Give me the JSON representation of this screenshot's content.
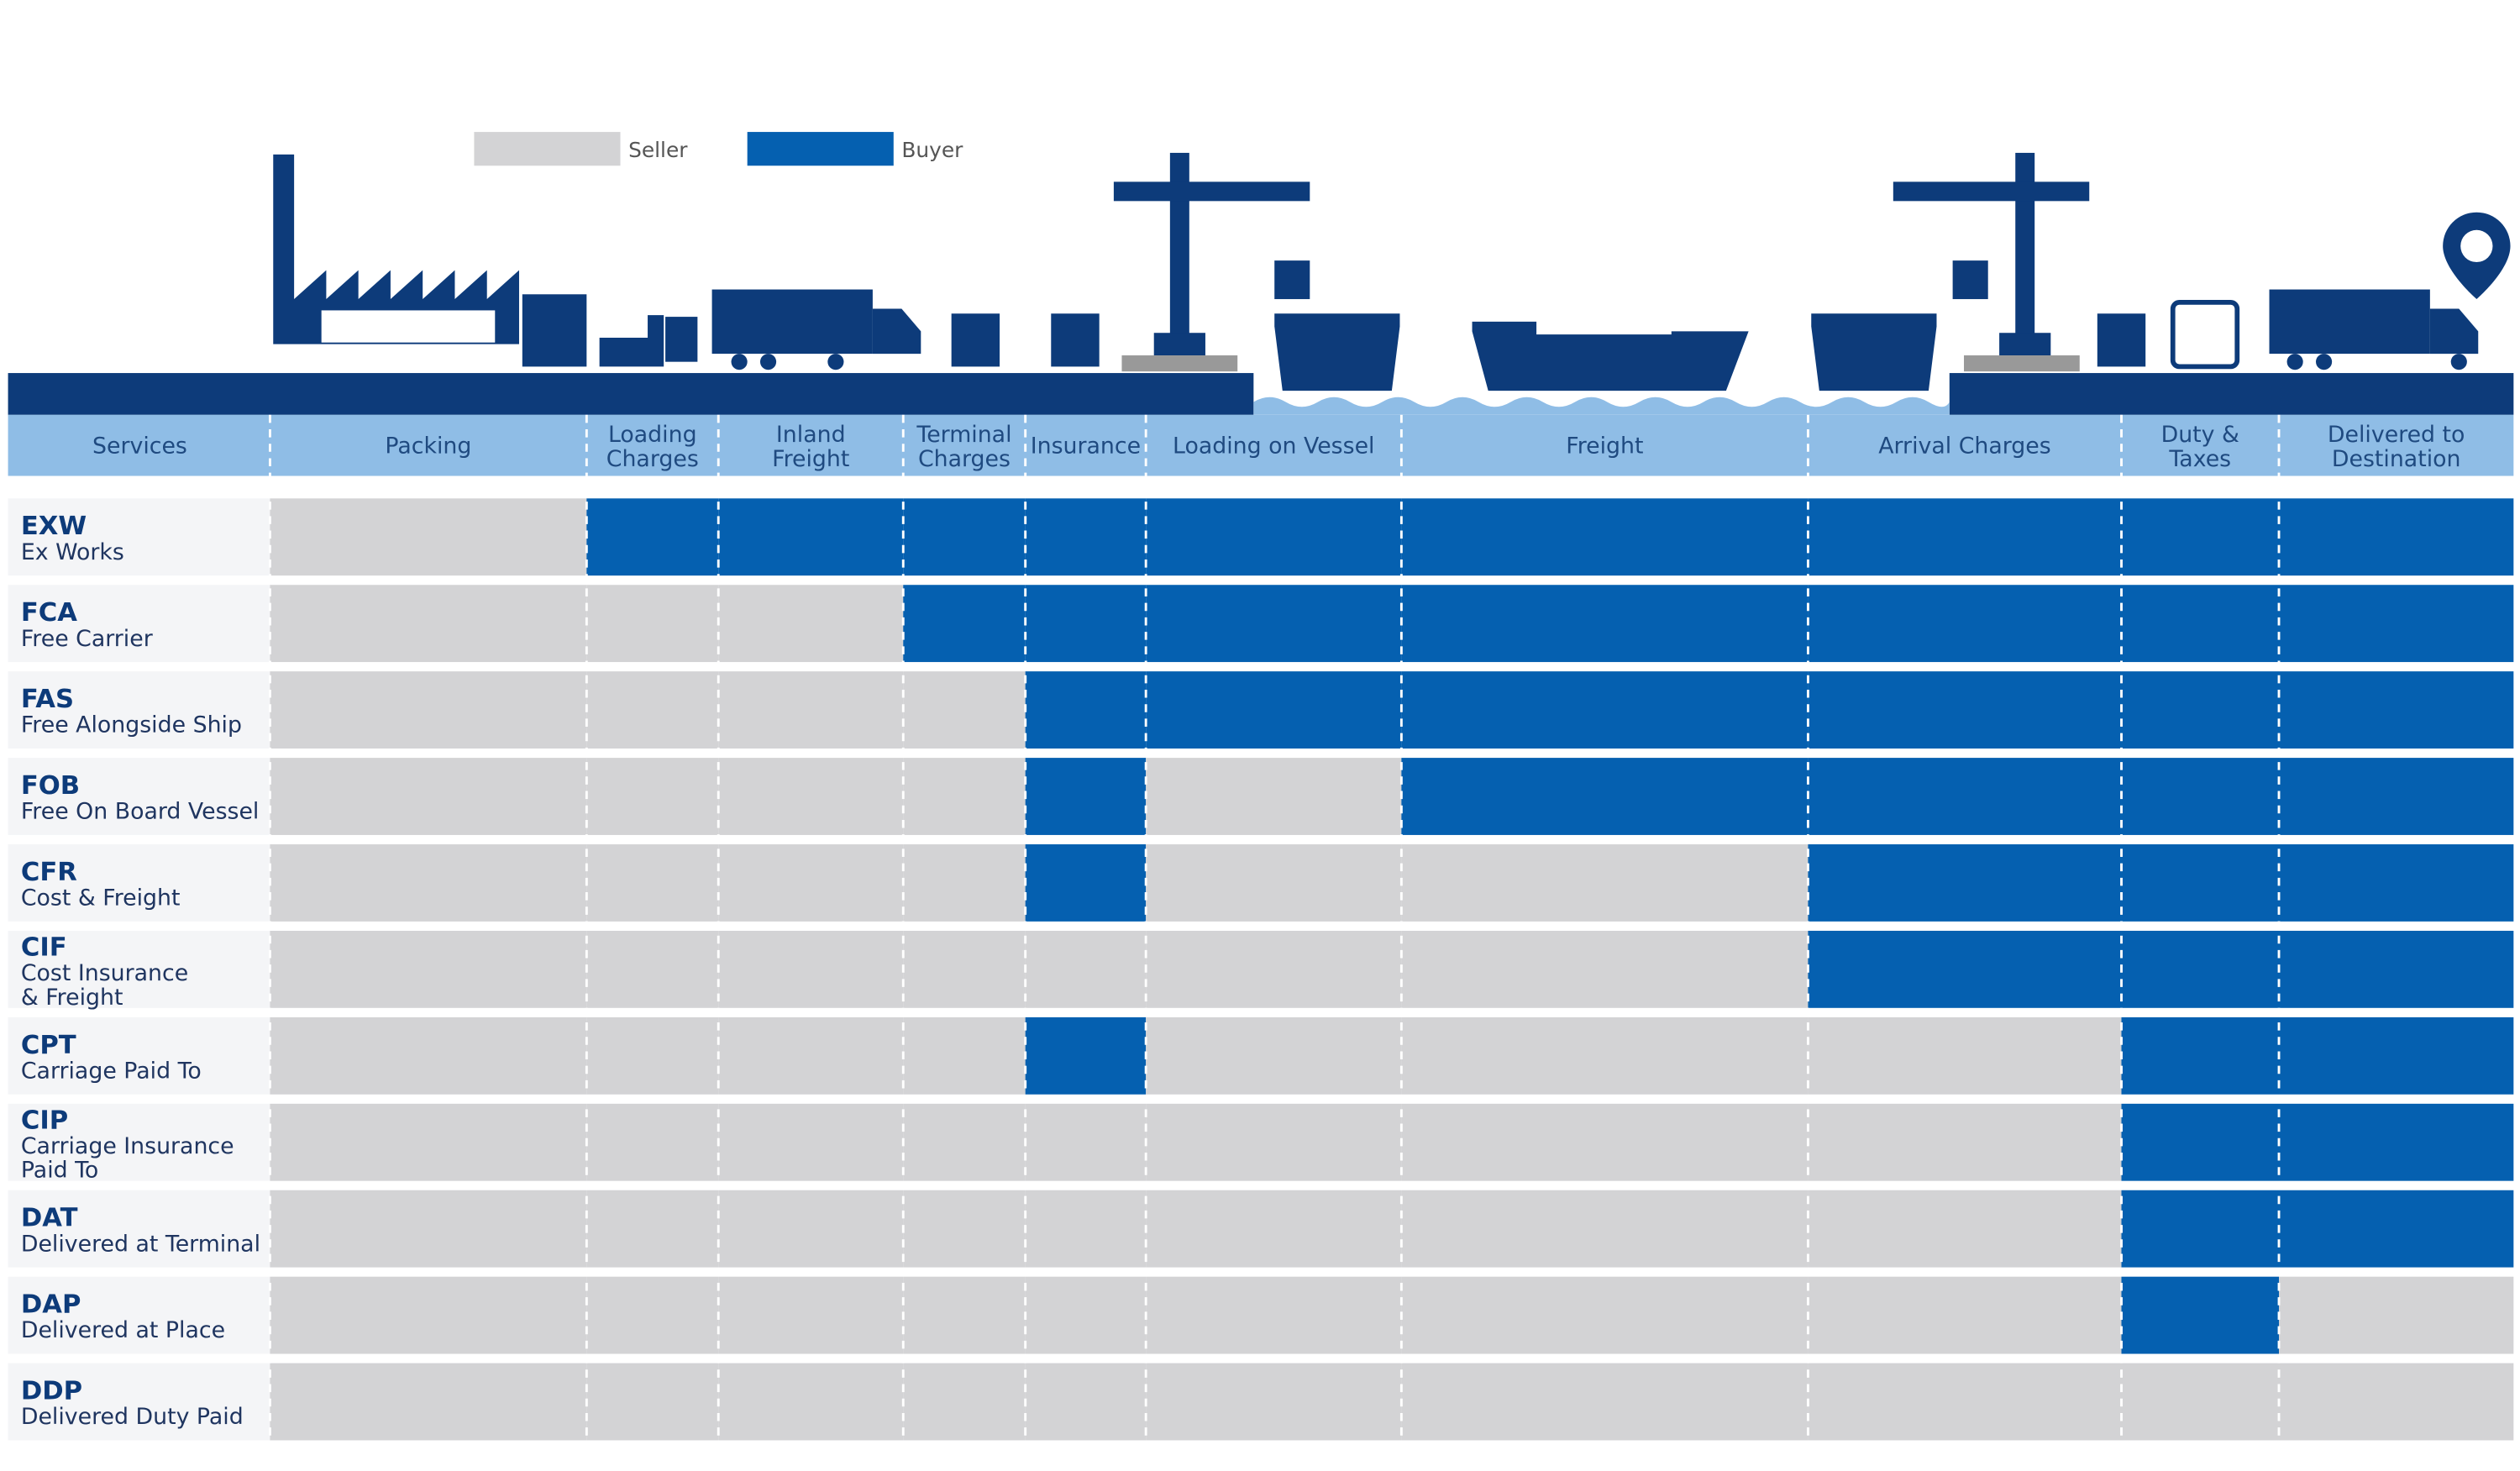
{
  "legend": {
    "seller": {
      "label": "Seller",
      "color": "#d3d3d5"
    },
    "buyer": {
      "label": "Buyer",
      "color": "#0560b0"
    }
  },
  "services_header": "Services",
  "columns": [
    [
      "Packing"
    ],
    [
      "Loading",
      "Charges"
    ],
    [
      "Inland",
      "Freight"
    ],
    [
      "Terminal",
      "Charges"
    ],
    [
      "Insurance"
    ],
    [
      "Loading on Vessel"
    ],
    [
      "Freight"
    ],
    [
      "Arrival Charges"
    ],
    [
      "Duty &",
      "Taxes"
    ],
    [
      "Delivered to",
      "Destination"
    ]
  ],
  "rows": [
    {
      "code": "EXW",
      "name": [
        "Ex Works"
      ],
      "cells": [
        "seller",
        "buyer",
        "buyer",
        "buyer",
        "buyer",
        "buyer",
        "buyer",
        "buyer",
        "buyer",
        "buyer"
      ]
    },
    {
      "code": "FCA",
      "name": [
        "Free Carrier"
      ],
      "cells": [
        "seller",
        "seller",
        "seller",
        "buyer",
        "buyer",
        "buyer",
        "buyer",
        "buyer",
        "buyer",
        "buyer"
      ]
    },
    {
      "code": "FAS",
      "name": [
        "Free Alongside Ship"
      ],
      "cells": [
        "seller",
        "seller",
        "seller",
        "seller",
        "buyer",
        "buyer",
        "buyer",
        "buyer",
        "buyer",
        "buyer"
      ]
    },
    {
      "code": "FOB",
      "name": [
        "Free On Board Vessel"
      ],
      "cells": [
        "seller",
        "seller",
        "seller",
        "seller",
        "buyer",
        "seller",
        "buyer",
        "buyer",
        "buyer",
        "buyer"
      ]
    },
    {
      "code": "CFR",
      "name": [
        "Cost & Freight"
      ],
      "cells": [
        "seller",
        "seller",
        "seller",
        "seller",
        "buyer",
        "seller",
        "seller",
        "buyer",
        "buyer",
        "buyer"
      ]
    },
    {
      "code": "CIF",
      "name": [
        "Cost Insurance",
        "& Freight"
      ],
      "cells": [
        "seller",
        "seller",
        "seller",
        "seller",
        "seller",
        "seller",
        "seller",
        "buyer",
        "buyer",
        "buyer"
      ]
    },
    {
      "code": "CPT",
      "name": [
        "Carriage Paid To"
      ],
      "cells": [
        "seller",
        "seller",
        "seller",
        "seller",
        "buyer",
        "seller",
        "seller",
        "seller",
        "buyer",
        "buyer"
      ]
    },
    {
      "code": "CIP",
      "name": [
        "Carriage Insurance",
        "Paid To"
      ],
      "cells": [
        "seller",
        "seller",
        "seller",
        "seller",
        "seller",
        "seller",
        "seller",
        "seller",
        "buyer",
        "buyer"
      ]
    },
    {
      "code": "DAT",
      "name": [
        "Delivered at Terminal"
      ],
      "cells": [
        "seller",
        "seller",
        "seller",
        "seller",
        "seller",
        "seller",
        "seller",
        "seller",
        "buyer",
        "buyer"
      ]
    },
    {
      "code": "DAP",
      "name": [
        "Delivered at Place"
      ],
      "cells": [
        "seller",
        "seller",
        "seller",
        "seller",
        "seller",
        "seller",
        "seller",
        "seller",
        "buyer",
        "seller"
      ]
    },
    {
      "code": "DDP",
      "name": [
        "Delivered Duty Paid"
      ],
      "cells": [
        "seller",
        "seller",
        "seller",
        "seller",
        "seller",
        "seller",
        "seller",
        "seller",
        "seller",
        "seller"
      ]
    }
  ]
}
